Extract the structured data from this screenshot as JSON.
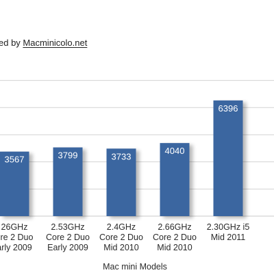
{
  "chart_data": {
    "type": "bar",
    "subtitle": "ed by Macminicolo.net",
    "subtitle_link_text": "Macminicolo.net",
    "xlabel": "Mac mini Models",
    "ylabel": "",
    "ylim": [
      0,
      7500
    ],
    "grid": true,
    "categories": [
      [
        "26GHz",
        "ore 2 Duo",
        "arly 2009"
      ],
      [
        "2.53GHz",
        "Core 2 Duo",
        "Early 2009"
      ],
      [
        "2.4GHz",
        "Core 2 Duo",
        "Mid 2010"
      ],
      [
        "2.66GHz",
        "Core 2 Duo",
        "Mid 2010"
      ],
      [
        "2.30GHz i5",
        "Mid 2011"
      ]
    ],
    "series": [
      {
        "values": [
          3567,
          3799,
          3733,
          4040,
          6396
        ],
        "labels": [
          "3567",
          "3799",
          "3733",
          "4040",
          "6396"
        ],
        "color": "#3b66a0"
      }
    ]
  }
}
